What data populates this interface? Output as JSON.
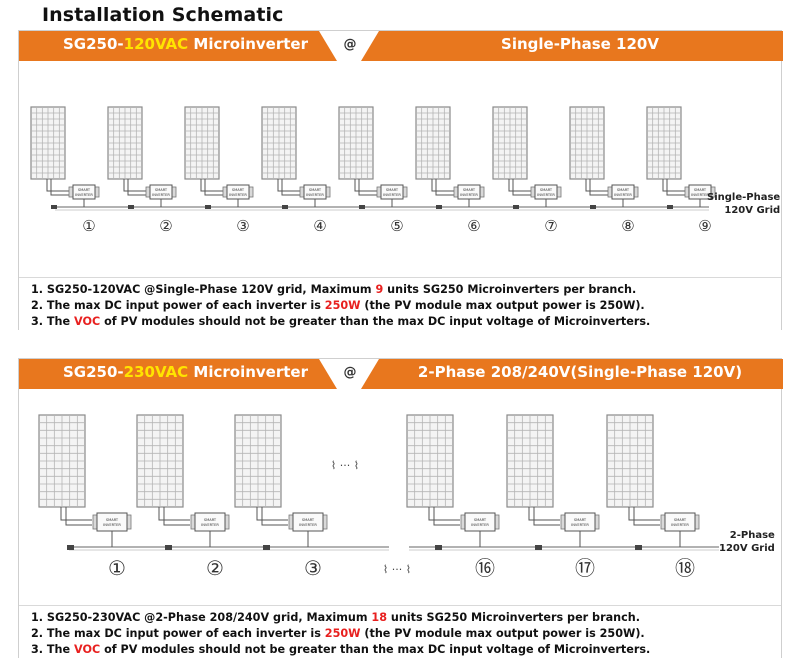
{
  "page_title": "Installation Schematic",
  "colors": {
    "orange": "#e8771e",
    "red": "#e8201f",
    "yellow": "#ffe400"
  },
  "section1": {
    "model_prefix": "SG250-",
    "model_voltage": "120VAC",
    "model_suffix": " Microinverter",
    "at": "@",
    "grid_type": "Single-Phase 120V",
    "unit_numbers": [
      "①",
      "②",
      "③",
      "④",
      "⑤",
      "⑥",
      "⑦",
      "⑧",
      "⑨"
    ],
    "inverter_label": "SMART INVERTER",
    "grid_label_1": "Single-Phase",
    "grid_label_2": "120V Grid",
    "notes": [
      {
        "pre": "1. SG250-120VAC @Single-Phase 120V grid, Maximum ",
        "hl": "9",
        "post": " units SG250 Microinverters  per branch."
      },
      {
        "pre": "2. The max DC input power of each inverter is ",
        "hl": "250W",
        "post": " (the PV module max output power is 250W)."
      },
      {
        "pre": "3. The ",
        "hl": "VOC",
        "post": " of PV modules should not be greater than the max DC input voltage of Microinverters."
      }
    ]
  },
  "section2": {
    "model_prefix": "SG250-",
    "model_voltage": "230VAC",
    "model_suffix": " Microinverter",
    "at": "@",
    "grid_type": "2-Phase 208/240V(Single-Phase 120V)",
    "unit_numbers": [
      "①",
      "②",
      "③",
      "⑯",
      "⑰",
      "⑱"
    ],
    "ellipsis_top": "⌇ ··· ⌇",
    "ellipsis_bottom": "⌇ ··· ⌇",
    "inverter_label": "SMART INVERTER",
    "grid_label_1": "2-Phase",
    "grid_label_2": "120V Grid",
    "notes": [
      {
        "pre": "1. SG250-230VAC @2-Phase 208/240V grid, Maximum ",
        "hl": "18",
        "post": " units SG250 Microinverters per branch."
      },
      {
        "pre": "2. The max DC input power of each inverter is ",
        "hl": "250W",
        "post": " (the PV module max output power is 250W)."
      },
      {
        "pre": "3. The ",
        "hl": "VOC",
        "post": " of PV modules should not be greater than the max DC input voltage of Microinverters."
      }
    ]
  }
}
